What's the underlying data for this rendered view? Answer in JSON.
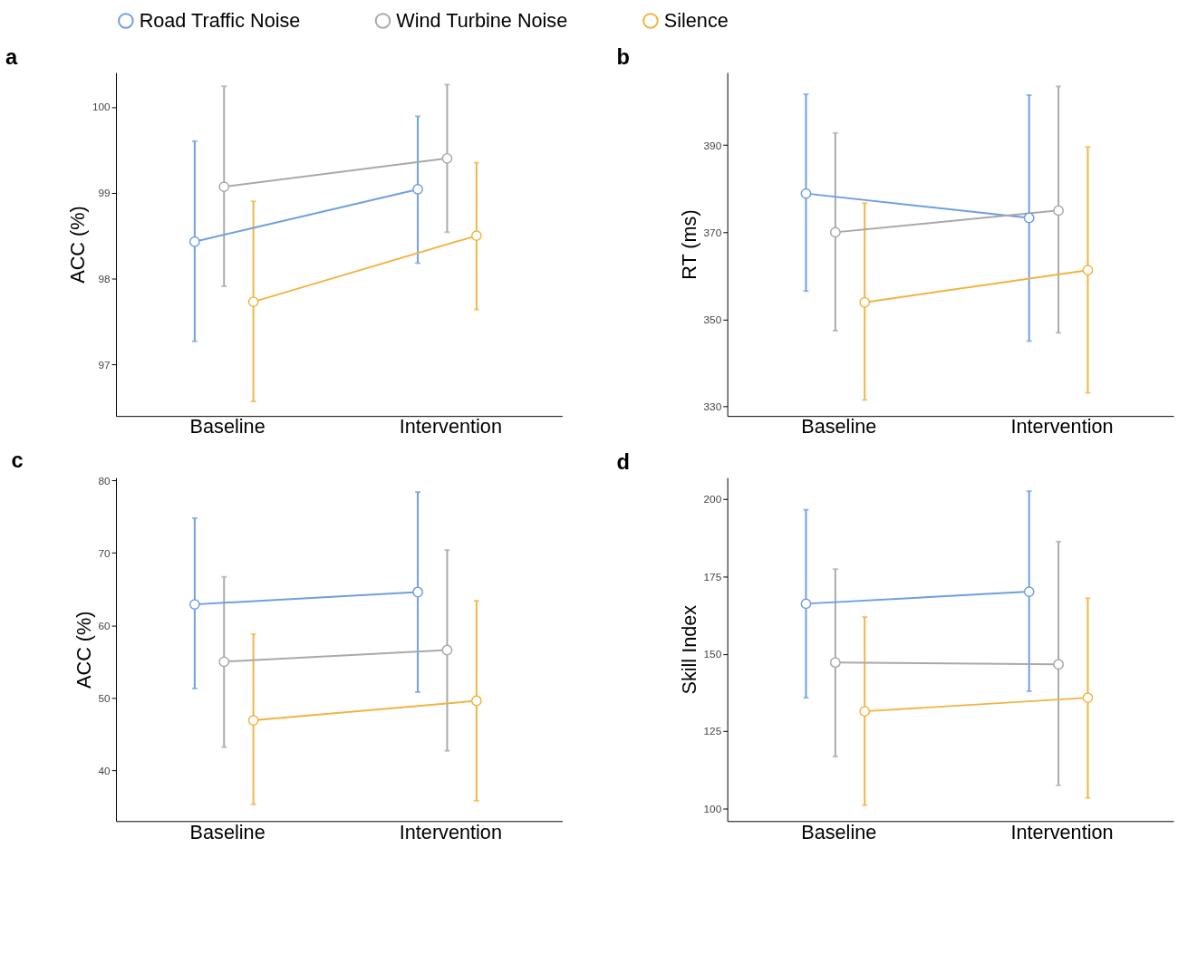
{
  "chart_data": [
    {
      "type": "line",
      "title": "a",
      "ylabel": "ACC (%)",
      "categories": [
        "Baseline",
        "Intervention"
      ],
      "ylim": [
        96.4,
        100.4
      ],
      "yticks": [
        97,
        98,
        99,
        100
      ],
      "legend": "top",
      "marker": "circle",
      "grid": false,
      "series": [
        {
          "name": "Road Traffic Noise",
          "color": "#6f9fde",
          "values": [
            98.43,
            99.04
          ],
          "errors": [
            [
              97.27,
              99.6
            ],
            [
              98.18,
              99.89
            ]
          ]
        },
        {
          "name": "Wind Turbine Noise",
          "color": "#a9a9a9",
          "values": [
            99.07,
            99.4
          ],
          "errors": [
            [
              97.91,
              100.24
            ],
            [
              98.54,
              100.26
            ]
          ]
        },
        {
          "name": "Silence",
          "color": "#f0b443",
          "values": [
            97.73,
            98.5
          ],
          "errors": [
            [
              96.57,
              98.9
            ],
            [
              97.64,
              99.35
            ]
          ]
        }
      ]
    },
    {
      "type": "line",
      "title": "b",
      "ylabel": "RT (ms)",
      "categories": [
        "Baseline",
        "Intervention"
      ],
      "ylim": [
        327.8,
        406.7
      ],
      "yticks": [
        330,
        350,
        370,
        390
      ],
      "marker": "circle",
      "grid": false,
      "series": [
        {
          "name": "Road Traffic Noise",
          "color": "#6f9fde",
          "values": [
            378.9,
            373.3
          ],
          "errors": [
            [
              356.5,
              401.7
            ],
            [
              345.0,
              401.5
            ]
          ]
        },
        {
          "name": "Wind Turbine Noise",
          "color": "#a9a9a9",
          "values": [
            370.0,
            375.0
          ],
          "errors": [
            [
              347.4,
              392.8
            ],
            [
              346.9,
              403.5
            ]
          ]
        },
        {
          "name": "Silence",
          "color": "#f0b443",
          "values": [
            353.9,
            361.3
          ],
          "errors": [
            [
              331.5,
              376.7
            ],
            [
              333.1,
              389.6
            ]
          ]
        }
      ]
    },
    {
      "type": "line",
      "title": "c",
      "ylabel": "ACC (%)",
      "categories": [
        "Baseline",
        "Intervention"
      ],
      "ylim": [
        33.0,
        80.4
      ],
      "yticks": [
        40,
        50,
        60,
        70,
        80
      ],
      "marker": "circle",
      "grid": false,
      "series": [
        {
          "name": "Road Traffic Noise",
          "color": "#6f9fde",
          "values": [
            62.9,
            64.6
          ],
          "errors": [
            [
              51.3,
              74.8
            ],
            [
              50.8,
              78.4
            ]
          ]
        },
        {
          "name": "Wind Turbine Noise",
          "color": "#a9a9a9",
          "values": [
            55.0,
            56.6
          ],
          "errors": [
            [
              43.2,
              66.7
            ],
            [
              42.7,
              70.4
            ]
          ]
        },
        {
          "name": "Silence",
          "color": "#f0b443",
          "values": [
            46.9,
            49.6
          ],
          "errors": [
            [
              35.3,
              58.8
            ],
            [
              35.8,
              63.4
            ]
          ]
        }
      ]
    },
    {
      "type": "line",
      "title": "d",
      "ylabel": "Skill Index",
      "categories": [
        "Baseline",
        "Intervention"
      ],
      "ylim": [
        95.9,
        207
      ],
      "yticks": [
        100,
        125,
        150,
        175,
        200
      ],
      "marker": "circle",
      "grid": false,
      "series": [
        {
          "name": "Road Traffic Noise",
          "color": "#6f9fde",
          "values": [
            166.2,
            170.1
          ],
          "errors": [
            [
              135.8,
              196.6
            ],
            [
              137.9,
              202.6
            ]
          ]
        },
        {
          "name": "Wind Turbine Noise",
          "color": "#a9a9a9",
          "values": [
            147.2,
            146.6
          ],
          "errors": [
            [
              116.8,
              177.4
            ],
            [
              107.5,
              186.3
            ]
          ]
        },
        {
          "name": "Silence",
          "color": "#f0b443",
          "values": [
            131.4,
            135.8
          ],
          "errors": [
            [
              101.0,
              161.9
            ],
            [
              103.4,
              168.0
            ]
          ]
        }
      ]
    }
  ]
}
